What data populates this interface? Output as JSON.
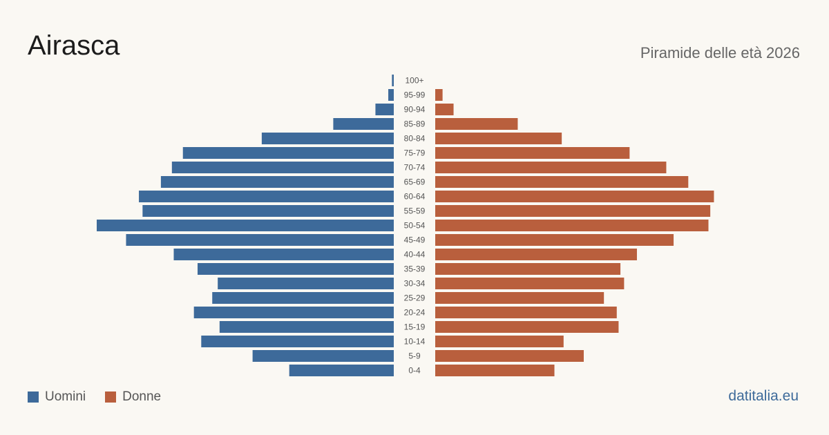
{
  "header": {
    "title": "Airasca",
    "subtitle": "Piramide delle età 2026"
  },
  "legend": {
    "men_label": "Uomini",
    "women_label": "Donne"
  },
  "brand": "datitalia.eu",
  "colors": {
    "men": "#3d6a9a",
    "women": "#b95f3d",
    "background": "#faf8f3"
  },
  "chart_data": {
    "type": "bar",
    "orientation": "horizontal-pyramid",
    "categories": [
      "100+",
      "95-99",
      "90-94",
      "85-89",
      "80-84",
      "75-79",
      "70-74",
      "65-69",
      "60-64",
      "55-59",
      "50-54",
      "45-49",
      "40-44",
      "35-39",
      "30-34",
      "25-29",
      "20-24",
      "15-19",
      "10-14",
      "5-9",
      "0-4"
    ],
    "series": [
      {
        "name": "Uomini",
        "values": [
          1,
          3,
          10,
          33,
          72,
          115,
          121,
          127,
          139,
          137,
          162,
          146,
          120,
          107,
          96,
          99,
          109,
          95,
          105,
          77,
          57
        ]
      },
      {
        "name": "Donne",
        "values": [
          0,
          4,
          10,
          45,
          69,
          106,
          126,
          138,
          152,
          150,
          149,
          130,
          110,
          101,
          103,
          92,
          99,
          100,
          70,
          81,
          65
        ]
      }
    ]
  }
}
